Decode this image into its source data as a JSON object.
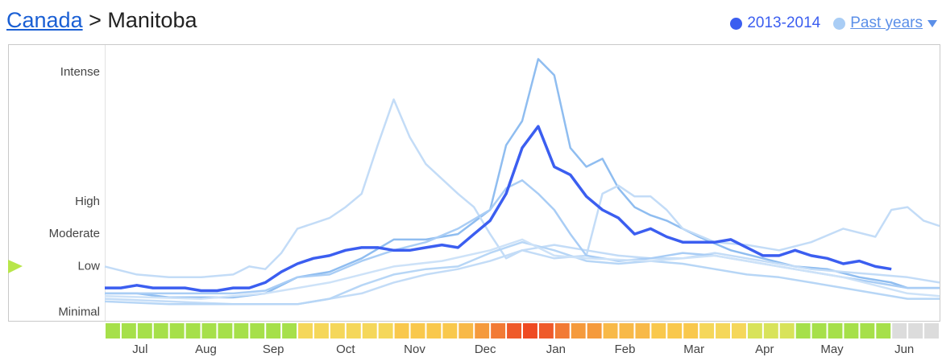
{
  "chart_data": {
    "type": "line",
    "breadcrumb": [
      "Canada",
      "Manitoba"
    ],
    "breadcrumb_separator": ">",
    "xlim": [
      0,
      52
    ],
    "ylim": [
      0,
      100
    ],
    "yticks": [
      {
        "value": 2,
        "label": "Minimal"
      },
      {
        "value": 19,
        "label": "Low"
      },
      {
        "value": 31,
        "label": "Moderate"
      },
      {
        "value": 43,
        "label": "High"
      },
      {
        "value": 91,
        "label": "Intense"
      }
    ],
    "xticks": [
      {
        "value": 2.2,
        "label": "Jul"
      },
      {
        "value": 6.3,
        "label": "Aug"
      },
      {
        "value": 10.5,
        "label": "Sep"
      },
      {
        "value": 15,
        "label": "Oct"
      },
      {
        "value": 19.3,
        "label": "Nov"
      },
      {
        "value": 23.7,
        "label": "Dec"
      },
      {
        "value": 28.1,
        "label": "Jan"
      },
      {
        "value": 32.4,
        "label": "Feb"
      },
      {
        "value": 36.7,
        "label": "Mar"
      },
      {
        "value": 41.1,
        "label": "Apr"
      },
      {
        "value": 45.3,
        "label": "May"
      },
      {
        "value": 49.8,
        "label": "Jun"
      }
    ],
    "series": [
      {
        "name": "2013-2014",
        "color": "#3b5ef0",
        "x": [
          0,
          1,
          2,
          3,
          4,
          5,
          6,
          7,
          8,
          9,
          10,
          11,
          12,
          13,
          14,
          15,
          16,
          17,
          18,
          19,
          20,
          21,
          22,
          23,
          24,
          25,
          26,
          27,
          28,
          29,
          30,
          31,
          32,
          33,
          34,
          35,
          36,
          37,
          38,
          39,
          40,
          41,
          42,
          43,
          44,
          45,
          46,
          47,
          48,
          49
        ],
        "values": [
          11,
          11,
          12,
          11,
          11,
          11,
          10,
          10,
          11,
          11,
          13,
          17,
          20,
          22,
          23,
          25,
          26,
          26,
          25,
          25,
          26,
          27,
          26,
          31,
          36,
          46,
          63,
          71,
          56,
          53,
          45,
          40,
          37,
          31,
          33,
          30,
          28,
          28,
          28,
          29,
          26,
          23,
          23,
          25,
          23,
          22,
          20,
          21,
          19,
          18
        ]
      }
    ],
    "past_years": {
      "name": "Past years",
      "color": "#a9cdf5",
      "series": [
        {
          "color": "#8fbdf0",
          "x": [
            0,
            2,
            4,
            6,
            8,
            10,
            12,
            14,
            16,
            18,
            20,
            22,
            24,
            25,
            26,
            27,
            28,
            29,
            30,
            31,
            32,
            33,
            34,
            35,
            37,
            39,
            41,
            43,
            45,
            47,
            49,
            50,
            52
          ],
          "values": [
            9,
            9,
            7.5,
            7.5,
            7.5,
            9,
            15,
            17,
            22,
            29,
            29,
            31,
            40,
            64,
            73,
            96,
            90,
            63,
            56,
            59,
            48,
            41,
            38,
            36,
            30,
            25,
            22,
            19,
            18,
            15,
            13,
            11,
            11
          ]
        },
        {
          "color": "#c3dcf7",
          "x": [
            0,
            2,
            4,
            6,
            8,
            9,
            10,
            11,
            12,
            13,
            14,
            15,
            16,
            17,
            18,
            19,
            20,
            22,
            23,
            24,
            25,
            26,
            28,
            30,
            32,
            34,
            36,
            38,
            40,
            42,
            44,
            46,
            48,
            50,
            52
          ],
          "values": [
            19,
            16,
            15,
            15,
            16,
            19,
            18,
            24,
            33,
            35,
            37,
            41,
            46,
            64,
            81,
            67,
            57,
            46,
            41,
            31,
            22,
            25,
            27,
            25,
            23,
            22,
            22,
            24,
            22,
            20,
            18,
            17,
            16,
            15,
            13
          ]
        },
        {
          "color": "#c3dcf7",
          "x": [
            0,
            4,
            8,
            12,
            14,
            16,
            18,
            20,
            22,
            24,
            26,
            28,
            30,
            31,
            32,
            33,
            34,
            35,
            36,
            38,
            40,
            42,
            44,
            46,
            48,
            49,
            50,
            51,
            52
          ],
          "values": [
            7,
            6,
            5,
            5,
            7,
            9,
            13,
            16,
            18,
            21,
            25,
            22,
            23,
            46,
            49,
            45,
            45,
            40,
            33,
            28,
            27,
            25,
            28,
            33,
            30,
            40,
            41,
            36,
            34
          ]
        },
        {
          "color": "#a9cdf5",
          "x": [
            0,
            4,
            8,
            10,
            12,
            14,
            16,
            18,
            20,
            22,
            24,
            25,
            26,
            27,
            28,
            29,
            30,
            32,
            34,
            36,
            38,
            40,
            42,
            44,
            46,
            48,
            50,
            52
          ],
          "values": [
            9,
            9,
            9,
            10,
            15,
            16,
            21,
            25,
            28,
            33,
            40,
            48,
            51,
            46,
            40,
            31,
            23,
            21,
            22,
            24,
            23,
            21,
            19,
            17,
            15,
            13,
            11,
            11
          ]
        },
        {
          "color": "#b7d6f6",
          "x": [
            0,
            4,
            8,
            12,
            14,
            16,
            18,
            20,
            22,
            24,
            26,
            28,
            30,
            32,
            34,
            36,
            38,
            40,
            42,
            44,
            46,
            48,
            50,
            52
          ],
          "values": [
            6,
            5,
            5,
            5,
            7,
            12,
            16,
            18,
            19,
            24,
            28,
            25,
            21,
            20,
            21,
            20,
            18,
            16,
            15,
            13,
            11,
            9,
            7,
            7
          ]
        },
        {
          "color": "#cde2f8",
          "x": [
            0,
            6,
            10,
            14,
            18,
            21,
            24,
            26,
            28,
            30,
            34,
            38,
            42,
            46,
            50,
            52
          ],
          "values": [
            8,
            7,
            9,
            13,
            19,
            21,
            25,
            29,
            23,
            22,
            21,
            23,
            19,
            15,
            9,
            8
          ]
        }
      ]
    },
    "heat_strip": [
      "#a6e04a",
      "#a6e04a",
      "#a6e04a",
      "#a6e04a",
      "#a6e04a",
      "#a6e04a",
      "#a6e04a",
      "#a6e04a",
      "#a6e04a",
      "#a6e04a",
      "#a6e04a",
      "#a6e04a",
      "#f5d75a",
      "#f5d75a",
      "#f5d75a",
      "#f5d75a",
      "#f5d75a",
      "#f5d75a",
      "#f9c84c",
      "#f9c84c",
      "#f9c84c",
      "#f9c84c",
      "#f8b948",
      "#f59a3c",
      "#f27a35",
      "#ef5a2a",
      "#ef4a22",
      "#ef5a2a",
      "#f27a35",
      "#f59a3c",
      "#f59a3c",
      "#f8b948",
      "#f8b948",
      "#f8b948",
      "#f9c84c",
      "#f9c84c",
      "#f9c84c",
      "#f5d75a",
      "#f5d75a",
      "#f5d75a",
      "#d8e35a",
      "#d8e35a",
      "#d8e35a",
      "#a6e04a",
      "#a6e04a",
      "#a6e04a",
      "#a6e04a",
      "#a6e04a",
      "#a6e04a",
      "#dcdcdc",
      "#dcdcdc",
      "#dcdcdc"
    ]
  }
}
